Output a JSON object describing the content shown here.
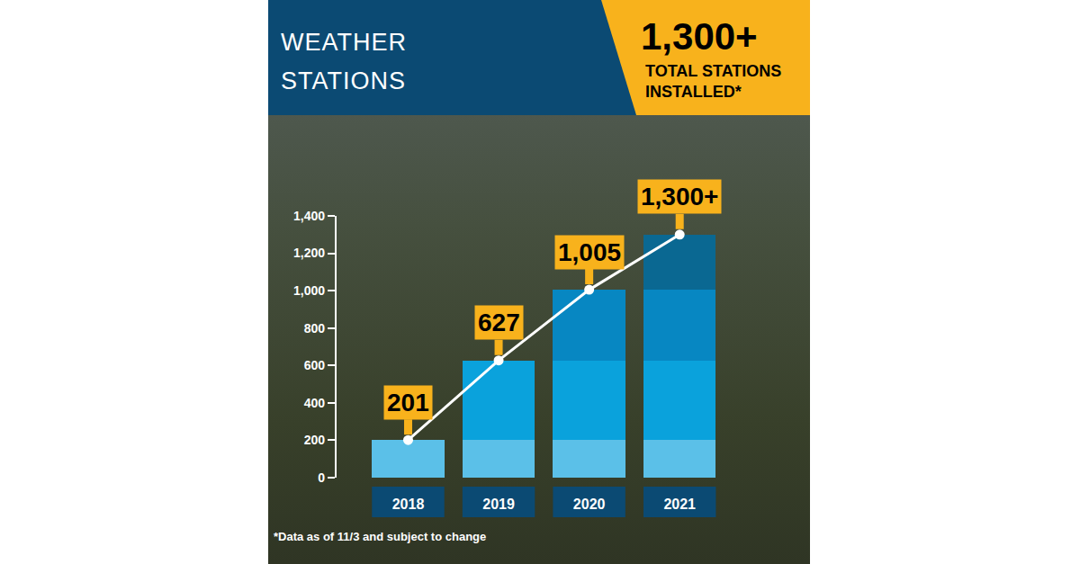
{
  "chart_data": {
    "type": "bar",
    "stacked": true,
    "title": "WEATHER STATIONS",
    "callout": {
      "headline": "1,300+",
      "text": "TOTAL STATIONS INSTALLED*"
    },
    "footnote": "*Data as of 11/3 and subject to change",
    "categories": [
      "2018",
      "2019",
      "2020",
      "2021"
    ],
    "series": [
      {
        "color": "#5bc0e8",
        "values": [
          201,
          201,
          201,
          201
        ]
      },
      {
        "color": "#0aa2dc",
        "values": [
          null,
          426,
          426,
          426
        ]
      },
      {
        "color": "#0787c2",
        "values": [
          null,
          null,
          378,
          378
        ]
      },
      {
        "color": "#0a6892",
        "values": [
          null,
          null,
          null,
          295
        ]
      },
      {
        "type": "line",
        "color": "#ffffff",
        "marker": "circle",
        "line_style": "solid",
        "values": [
          201,
          627,
          1005,
          1300
        ],
        "value_labels": [
          "201",
          "627",
          "1,005",
          "1,300+"
        ]
      }
    ],
    "ylim": [
      0,
      1400
    ],
    "yticks": [
      0,
      200,
      400,
      600,
      800,
      {
        "value": 1000,
        "label": "1,000"
      },
      {
        "value": 1200,
        "label": "1,200"
      },
      {
        "value": 1400,
        "label": "1,400"
      }
    ],
    "data_labels": true,
    "grid": false
  }
}
